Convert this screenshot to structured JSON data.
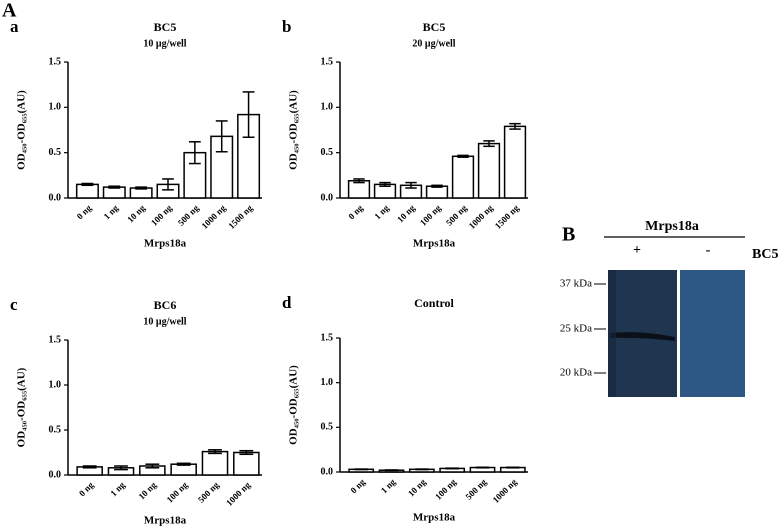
{
  "figure": {
    "panel_A": "A",
    "panel_B": "B"
  },
  "chart_data": [
    {
      "type": "bar",
      "panel": "a",
      "title": "BC5",
      "subtitle": "10 μg/well",
      "ylabel": "OD₄₅₀-OD₆₅₅(AU)",
      "xlabel": "Mrps18a",
      "categories": [
        "0 ng",
        "1 ng",
        "10 ng",
        "100 ng",
        "500 ng",
        "1000 ng",
        "1500 ng"
      ],
      "values": [
        0.15,
        0.12,
        0.11,
        0.15,
        0.5,
        0.68,
        0.92
      ],
      "errors": [
        0.01,
        0.01,
        0.01,
        0.06,
        0.12,
        0.17,
        0.25
      ],
      "color": "#ffffff",
      "ylim": [
        0,
        1.5
      ],
      "yticks": [
        {
          "value": 0,
          "label": "0.0"
        },
        0.5,
        {
          "value": 1,
          "label": "1.0"
        },
        1.5
      ]
    },
    {
      "type": "bar",
      "panel": "b",
      "title": "BC5",
      "subtitle": "20 μg/well",
      "ylabel": "OD₄₅₀-OD₆₅₅(AU)",
      "xlabel": "Mrps18a",
      "categories": [
        "0 ng",
        "1 ng",
        "10 ng",
        "100 ng",
        "500 ng",
        "1000 ng",
        "1500 ng"
      ],
      "values": [
        0.19,
        0.15,
        0.14,
        0.13,
        0.46,
        0.6,
        0.79
      ],
      "errors": [
        0.02,
        0.02,
        0.03,
        0.01,
        0.01,
        0.03,
        0.03
      ],
      "color": "#ffffff",
      "ylim": [
        0,
        1.5
      ],
      "yticks": [
        {
          "value": 0,
          "label": "0.0"
        },
        0.5,
        {
          "value": 1,
          "label": "1.0"
        },
        1.5
      ]
    },
    {
      "type": "bar",
      "panel": "c",
      "title": "BC6",
      "subtitle": "10 μg/well",
      "ylabel": "OD₄₅₀-OD₆₅₅(AU)",
      "xlabel": "Mrps18a",
      "categories": [
        "0 ng",
        "1 ng",
        "10 ng",
        "100 ng",
        "500 ng",
        "1000 ng"
      ],
      "values": [
        0.09,
        0.08,
        0.1,
        0.12,
        0.26,
        0.25
      ],
      "errors": [
        0.01,
        0.02,
        0.02,
        0.01,
        0.02,
        0.02
      ],
      "color": "#ffffff",
      "ylim": [
        0,
        1.5
      ],
      "yticks": [
        {
          "value": 0,
          "label": "0.0"
        },
        0.5,
        {
          "value": 1,
          "label": "1.0"
        },
        1.5
      ]
    },
    {
      "type": "bar",
      "panel": "d",
      "title": "Control",
      "ylabel": "OD₄₅₀-OD₆₅₅(AU)",
      "xlabel": "Mrps18a",
      "categories": [
        "0 ng",
        "1 ng",
        "10 ng",
        "100 ng",
        "500 ng",
        "1000 ng"
      ],
      "values": [
        0.03,
        0.02,
        0.03,
        0.04,
        0.05,
        0.05
      ],
      "errors": [
        0.003,
        0.003,
        0.003,
        0.003,
        0.003,
        0.003
      ],
      "color": "#ffffff",
      "ylim": [
        0,
        1.5
      ],
      "yticks": [
        {
          "value": 0,
          "label": "0.0"
        },
        0.5,
        {
          "value": 1,
          "label": "1.0"
        },
        1.5
      ]
    }
  ],
  "blot": {
    "title": "Mrps18a",
    "lane_plus": "+",
    "lane_minus": "-",
    "treatment": "BC5",
    "markers": [
      "37 kDa",
      "25 kDa",
      "20 kDa"
    ]
  }
}
